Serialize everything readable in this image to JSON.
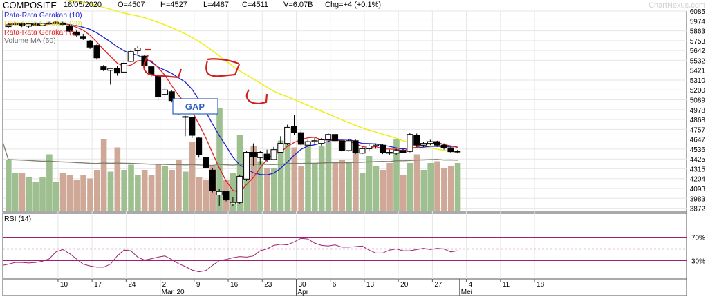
{
  "header": {
    "symbol": "COMPOSITE",
    "date": "18/05/2020",
    "open": "O=4507",
    "high": "H=4527",
    "low": "L=4487",
    "close": "C=4511",
    "volume": "V=6.07B",
    "change": "Chg=+4 (+0.1%)",
    "watermark": "ChartNexus.com"
  },
  "legend": {
    "ma10": "Rata-Rata Gerakan (10)",
    "ma_hidden": "Rata-Rata Gerakan (20)",
    "ma5": "Rata-Rata Gerakan (5)",
    "vma50": "Volume MA (50)"
  },
  "annotation": {
    "gap": "GAP"
  },
  "rsi": {
    "label": "RSI (14)",
    "levels": [
      "70%",
      "30%"
    ],
    "values": [
      24,
      27,
      27,
      26,
      27,
      29,
      33,
      45,
      49,
      42,
      33,
      24,
      21,
      19,
      19,
      24,
      38,
      48,
      47,
      36,
      31,
      33,
      36,
      38,
      32,
      25,
      20,
      14,
      11,
      13,
      22,
      30,
      32,
      35,
      37,
      36,
      38,
      47,
      50,
      56,
      58,
      57,
      62,
      68,
      67,
      60,
      56,
      55,
      57,
      53,
      53,
      54,
      55,
      48,
      43,
      43,
      48,
      50,
      47,
      47,
      49,
      51,
      49,
      51,
      50,
      45,
      47
    ]
  },
  "colors": {
    "ma5": "#e02020",
    "ma10": "#2020d0",
    "ma_long": "#f0f010",
    "vma": "#808070",
    "vol_up": "#9ec090",
    "vol_down": "#d0a898",
    "rsi": "#a02070",
    "annot": "#d02020",
    "gap_text": "#3060c0"
  },
  "chart_data": [
    {
      "type": "candlestick",
      "price_axis": {
        "ticks": [
          "6085",
          "5974",
          "5863",
          "5753",
          "5642",
          "5532",
          "5421",
          "5310",
          "5200",
          "5089",
          "4978",
          "4868",
          "4757",
          "4647",
          "4536",
          "4425",
          "4315",
          "4204",
          "4093",
          "3983",
          "3872"
        ],
        "range": [
          3830,
          6085
        ]
      },
      "x_axis": {
        "day_labels": [
          "10",
          "17",
          "24",
          "2",
          "9",
          "16",
          "23",
          "30",
          "6",
          "13",
          "20",
          "27",
          "4",
          "11",
          "18"
        ],
        "month_labels": [
          "Mar '20",
          "Apr",
          "Mei"
        ]
      },
      "candles": [
        {
          "o": 5910,
          "h": 5945,
          "l": 5895,
          "c": 5930
        },
        {
          "o": 5935,
          "h": 5960,
          "l": 5925,
          "c": 5945
        },
        {
          "o": 5950,
          "h": 5955,
          "l": 5905,
          "c": 5920
        },
        {
          "o": 5915,
          "h": 5950,
          "l": 5900,
          "c": 5940
        },
        {
          "o": 5930,
          "h": 5955,
          "l": 5915,
          "c": 5935
        },
        {
          "o": 5925,
          "h": 5950,
          "l": 5920,
          "c": 5945
        },
        {
          "o": 5945,
          "h": 5965,
          "l": 5935,
          "c": 5950
        },
        {
          "o": 5955,
          "h": 5975,
          "l": 5940,
          "c": 5960
        },
        {
          "o": 5950,
          "h": 5965,
          "l": 5925,
          "c": 5935
        },
        {
          "o": 5920,
          "h": 5935,
          "l": 5845,
          "c": 5860
        },
        {
          "o": 5850,
          "h": 5865,
          "l": 5800,
          "c": 5815
        },
        {
          "o": 5800,
          "h": 5830,
          "l": 5760,
          "c": 5780
        },
        {
          "o": 5750,
          "h": 5760,
          "l": 5660,
          "c": 5680
        },
        {
          "o": 5700,
          "h": 5710,
          "l": 5540,
          "c": 5560
        },
        {
          "o": 5460,
          "h": 5480,
          "l": 5410,
          "c": 5430
        },
        {
          "o": 5420,
          "h": 5450,
          "l": 5260,
          "c": 5440
        },
        {
          "o": 5440,
          "h": 5470,
          "l": 5360,
          "c": 5390
        },
        {
          "o": 5400,
          "h": 5520,
          "l": 5390,
          "c": 5500
        },
        {
          "o": 5520,
          "h": 5650,
          "l": 5510,
          "c": 5630
        },
        {
          "o": 5640,
          "h": 5690,
          "l": 5600,
          "c": 5670
        },
        {
          "o": 5580,
          "h": 5590,
          "l": 5450,
          "c": 5470
        },
        {
          "o": 5460,
          "h": 5470,
          "l": 5350,
          "c": 5370
        },
        {
          "o": 5360,
          "h": 5370,
          "l": 5080,
          "c": 5120
        },
        {
          "o": 5150,
          "h": 5230,
          "l": 5110,
          "c": 5200
        },
        {
          "o": 5180,
          "h": 5200,
          "l": 5060,
          "c": 5080
        },
        {
          "o": 5050,
          "h": 5060,
          "l": 4920,
          "c": 4940
        },
        {
          "o": 4900,
          "h": 4910,
          "l": 4680,
          "c": 4900
        },
        {
          "o": 4890,
          "h": 4900,
          "l": 4660,
          "c": 4690
        },
        {
          "o": 4660,
          "h": 4670,
          "l": 4440,
          "c": 4470
        },
        {
          "o": 4440,
          "h": 4450,
          "l": 4320,
          "c": 4330
        },
        {
          "o": 4300,
          "h": 4320,
          "l": 4050,
          "c": 4070
        },
        {
          "o": 4020,
          "h": 4090,
          "l": 3900,
          "c": 4060
        },
        {
          "o": 4060,
          "h": 4070,
          "l": 3950,
          "c": 3965
        },
        {
          "o": 3920,
          "h": 4000,
          "l": 3900,
          "c": 3937
        },
        {
          "o": 3937,
          "h": 4250,
          "l": 3920,
          "c": 4230
        },
        {
          "o": 4200,
          "h": 4520,
          "l": 4180,
          "c": 4500
        },
        {
          "o": 4500,
          "h": 4600,
          "l": 4350,
          "c": 4450
        },
        {
          "o": 4440,
          "h": 4520,
          "l": 4360,
          "c": 4500
        },
        {
          "o": 4480,
          "h": 4530,
          "l": 4390,
          "c": 4420
        },
        {
          "o": 4420,
          "h": 4560,
          "l": 4410,
          "c": 4530
        },
        {
          "o": 4500,
          "h": 4680,
          "l": 4490,
          "c": 4600
        },
        {
          "o": 4600,
          "h": 4810,
          "l": 4580,
          "c": 4780
        },
        {
          "o": 4790,
          "h": 4920,
          "l": 4690,
          "c": 4720
        },
        {
          "o": 4720,
          "h": 4750,
          "l": 4570,
          "c": 4590
        },
        {
          "o": 4580,
          "h": 4640,
          "l": 4560,
          "c": 4620
        },
        {
          "o": 4620,
          "h": 4660,
          "l": 4600,
          "c": 4630
        },
        {
          "o": 4600,
          "h": 4660,
          "l": 4570,
          "c": 4640
        },
        {
          "o": 4640,
          "h": 4720,
          "l": 4610,
          "c": 4700
        },
        {
          "o": 4700,
          "h": 4710,
          "l": 4610,
          "c": 4630
        },
        {
          "o": 4630,
          "h": 4650,
          "l": 4500,
          "c": 4520
        },
        {
          "o": 4520,
          "h": 4650,
          "l": 4510,
          "c": 4630
        },
        {
          "o": 4630,
          "h": 4650,
          "l": 4480,
          "c": 4500
        },
        {
          "o": 4490,
          "h": 4560,
          "l": 4480,
          "c": 4540
        },
        {
          "o": 4540,
          "h": 4590,
          "l": 4510,
          "c": 4570
        },
        {
          "o": 4570,
          "h": 4600,
          "l": 4540,
          "c": 4580
        },
        {
          "o": 4580,
          "h": 4590,
          "l": 4480,
          "c": 4500
        },
        {
          "o": 4500,
          "h": 4530,
          "l": 4470,
          "c": 4490
        },
        {
          "o": 4490,
          "h": 4540,
          "l": 4470,
          "c": 4520
        },
        {
          "o": 4520,
          "h": 4550,
          "l": 4490,
          "c": 4500
        },
        {
          "o": 4510,
          "h": 4720,
          "l": 4500,
          "c": 4700
        },
        {
          "o": 4690,
          "h": 4710,
          "l": 4560,
          "c": 4580
        },
        {
          "o": 4580,
          "h": 4620,
          "l": 4560,
          "c": 4600
        },
        {
          "o": 4600,
          "h": 4640,
          "l": 4580,
          "c": 4620
        },
        {
          "o": 4620,
          "h": 4630,
          "l": 4560,
          "c": 4580
        },
        {
          "o": 4580,
          "h": 4600,
          "l": 4530,
          "c": 4550
        },
        {
          "o": 4550,
          "h": 4560,
          "l": 4490,
          "c": 4507
        },
        {
          "o": 4507,
          "h": 4527,
          "l": 4487,
          "c": 4511
        }
      ]
    },
    {
      "type": "bar",
      "name": "volume",
      "range": [
        0,
        1
      ],
      "values": [
        0.3,
        0.22,
        0.22,
        0.2,
        0.17,
        0.2,
        0.33,
        0.17,
        0.22,
        0.21,
        0.18,
        0.21,
        0.19,
        0.24,
        0.42,
        0.23,
        0.37,
        0.24,
        0.27,
        0.21,
        0.24,
        0.21,
        0.27,
        0.26,
        0.24,
        0.3,
        0.23,
        0.4,
        0.2,
        0.18,
        0.26,
        0.6,
        0.18,
        0.22,
        0.44,
        0.34,
        0.38,
        0.29,
        0.25,
        0.25,
        0.41,
        0.48,
        0.37,
        0.26,
        0.38,
        0.28,
        0.38,
        0.4,
        0.28,
        0.3,
        0.28,
        0.37,
        0.22,
        0.32,
        0.26,
        0.24,
        0.28,
        0.42,
        0.21,
        0.28,
        0.33,
        0.24,
        0.28,
        0.29,
        0.25,
        0.26,
        0.28
      ]
    }
  ]
}
